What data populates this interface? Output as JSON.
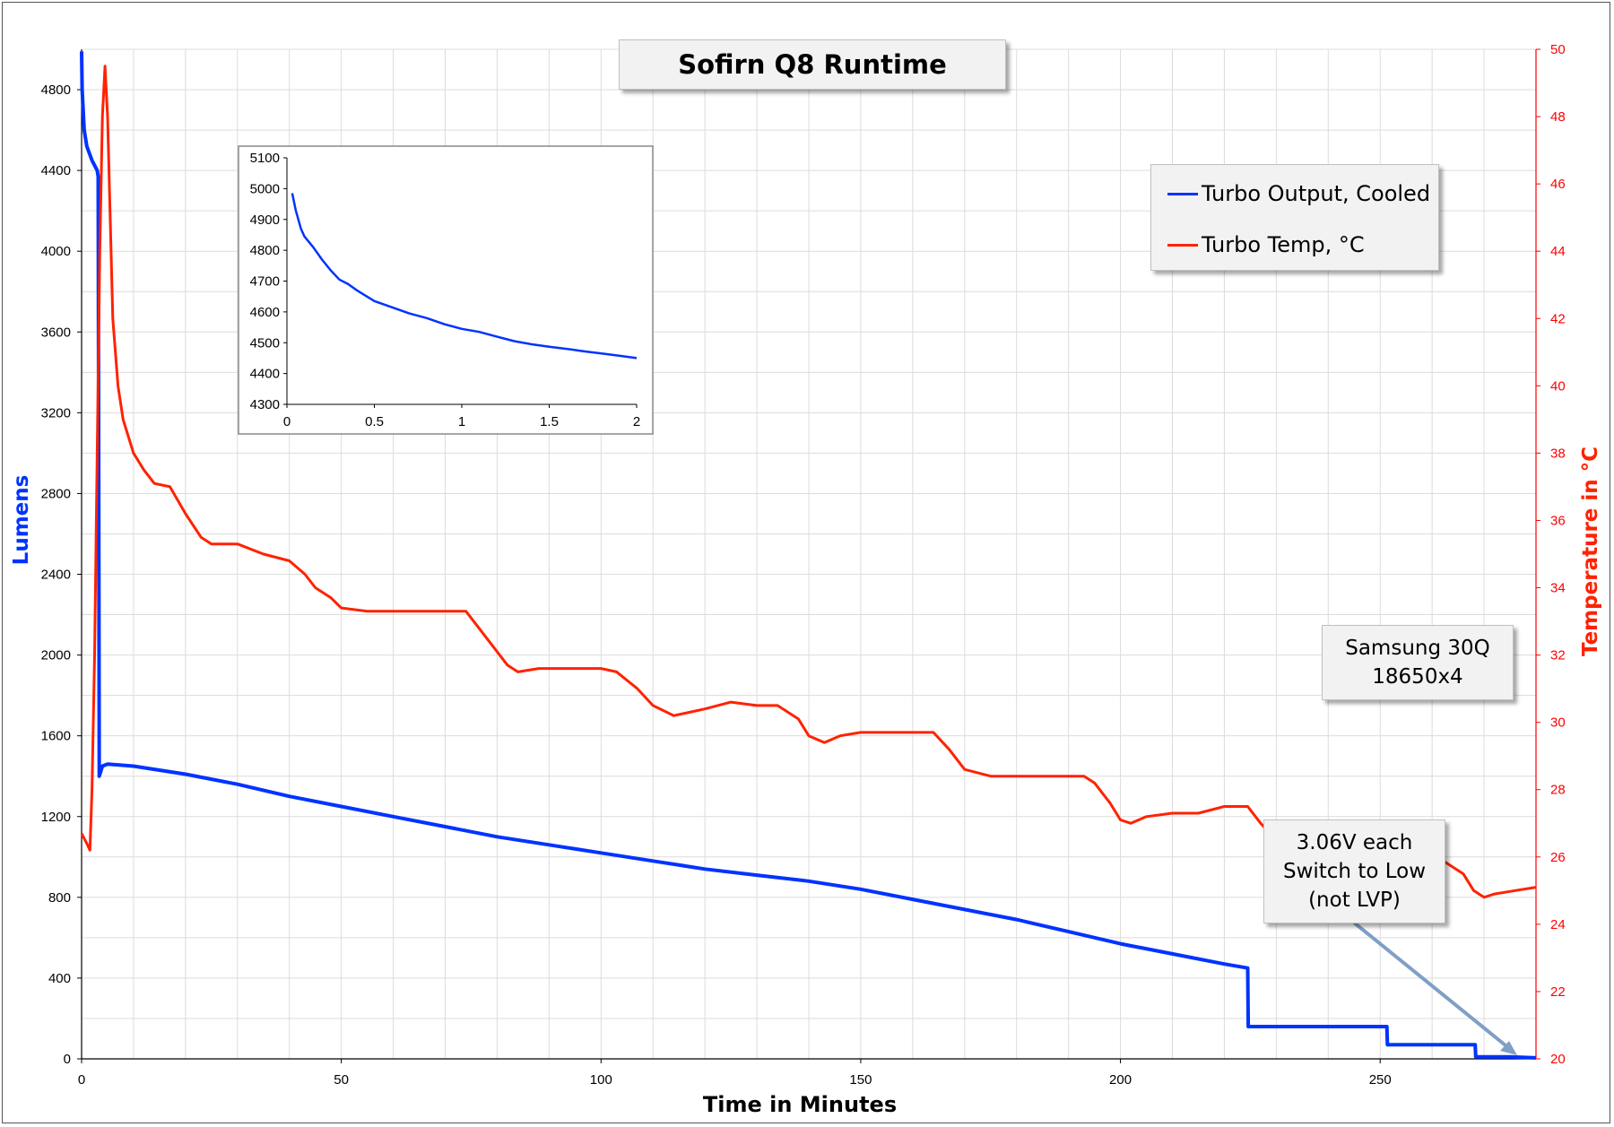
{
  "title": "Sofirn Q8 Runtime",
  "legend": {
    "entries": [
      {
        "label": "Turbo Output, Cooled",
        "color": "#0033ff"
      },
      {
        "label": "Turbo Temp, °C",
        "color": "#ff2200"
      }
    ]
  },
  "battery_note": {
    "line1": "Samsung 30Q",
    "line2": "18650x4"
  },
  "switch_note": {
    "line1": "3.06V each",
    "line2": "Switch to Low",
    "line3": "(not LVP)"
  },
  "colors": {
    "lumens": "#0033ff",
    "temp": "#ff2200",
    "arrow": "#7f9fc8",
    "grid": "#dcdcdc"
  },
  "chart_data": [
    {
      "type": "line",
      "title": "Sofirn Q8 Runtime",
      "xlabel": "Time in Minutes",
      "ylabel": "Lumens",
      "y2label": "Temperature in °C",
      "xlim": [
        0,
        280
      ],
      "ylim": [
        0,
        5000
      ],
      "y2lim": [
        20,
        50
      ],
      "x_ticks": [
        0,
        50,
        100,
        150,
        200,
        250
      ],
      "y_ticks": [
        0,
        400,
        800,
        1200,
        1600,
        2000,
        2400,
        2800,
        3200,
        3600,
        4000,
        4400,
        4800
      ],
      "y2_ticks": [
        20,
        22,
        24,
        26,
        28,
        30,
        32,
        34,
        36,
        38,
        40,
        42,
        44,
        46,
        48,
        50
      ],
      "grid": true,
      "legend_position": "top-right",
      "series": [
        {
          "name": "Turbo Output, Cooled",
          "axis": "left",
          "x": [
            0,
            0.1,
            0.5,
            1,
            2,
            3,
            3.2,
            3.4,
            4,
            5,
            10,
            20,
            30,
            40,
            50,
            60,
            70,
            80,
            90,
            100,
            110,
            120,
            130,
            140,
            150,
            160,
            170,
            180,
            190,
            200,
            210,
            220,
            224.5,
            224.6,
            230,
            240,
            251.3,
            251.4,
            260,
            268.3,
            268.4,
            275,
            280
          ],
          "y": [
            4990,
            4800,
            4600,
            4520,
            4450,
            4400,
            4370,
            1400,
            1450,
            1460,
            1450,
            1410,
            1360,
            1300,
            1250,
            1200,
            1150,
            1100,
            1060,
            1020,
            980,
            940,
            910,
            880,
            840,
            790,
            740,
            690,
            630,
            570,
            520,
            470,
            450,
            160,
            160,
            160,
            160,
            70,
            70,
            70,
            10,
            10,
            5
          ]
        },
        {
          "name": "Turbo Temp, °C",
          "axis": "right",
          "x": [
            0,
            1,
            1.6,
            2,
            2.5,
            3,
            3.5,
            4,
            4.5,
            5,
            5.5,
            6,
            7,
            8,
            10,
            12,
            14,
            17,
            20,
            23,
            25,
            30,
            35,
            40,
            43,
            45,
            48,
            50,
            55,
            60,
            65,
            70,
            74,
            78,
            82,
            84,
            88,
            92,
            96,
            100,
            103,
            107,
            110,
            114,
            120,
            125,
            130,
            134,
            138,
            140,
            143,
            146,
            150,
            155,
            160,
            164,
            167,
            170,
            175,
            180,
            185,
            190,
            193,
            195,
            198,
            200,
            202,
            205,
            210,
            215,
            220,
            224.5,
            225,
            227,
            230,
            240,
            250,
            262,
            266,
            268,
            270,
            272,
            276,
            280
          ],
          "y": [
            26.7,
            26.4,
            26.2,
            28,
            32,
            38,
            44,
            48,
            49.5,
            48,
            45,
            42,
            40,
            39,
            38,
            37.5,
            37.1,
            37,
            36.2,
            35.5,
            35.3,
            35.3,
            35.0,
            34.8,
            34.4,
            34.0,
            33.7,
            33.4,
            33.3,
            33.3,
            33.3,
            33.3,
            33.3,
            32.5,
            31.7,
            31.5,
            31.6,
            31.6,
            31.6,
            31.6,
            31.5,
            31.0,
            30.5,
            30.2,
            30.4,
            30.6,
            30.5,
            30.5,
            30.1,
            29.6,
            29.4,
            29.6,
            29.7,
            29.7,
            29.7,
            29.7,
            29.2,
            28.6,
            28.4,
            28.4,
            28.4,
            28.4,
            28.4,
            28.2,
            27.6,
            27.1,
            27.0,
            27.2,
            27.3,
            27.3,
            27.5,
            27.5,
            27.4,
            27.0,
            26.5,
            26.3,
            26.1,
            25.9,
            25.5,
            25.0,
            24.8,
            24.9,
            25.0,
            25.1
          ]
        }
      ]
    },
    {
      "type": "line",
      "title": "",
      "xlim": [
        0,
        2
      ],
      "ylim": [
        4300,
        5100
      ],
      "x_ticks": [
        "0",
        "0.5",
        "1",
        "1.5",
        "2"
      ],
      "y_ticks": [
        4300,
        4400,
        4500,
        4600,
        4700,
        4800,
        4900,
        5000,
        5100
      ],
      "series": [
        {
          "name": "Turbo Output, Cooled",
          "x": [
            0.03,
            0.05,
            0.08,
            0.1,
            0.15,
            0.2,
            0.25,
            0.3,
            0.35,
            0.4,
            0.5,
            0.6,
            0.7,
            0.8,
            0.9,
            1.0,
            1.1,
            1.2,
            1.3,
            1.4,
            1.5,
            1.6,
            1.7,
            1.8,
            1.9,
            2.0
          ],
          "y": [
            4985,
            4930,
            4870,
            4845,
            4810,
            4770,
            4735,
            4705,
            4690,
            4670,
            4635,
            4615,
            4595,
            4580,
            4560,
            4545,
            4535,
            4520,
            4505,
            4495,
            4487,
            4480,
            4472,
            4465,
            4458,
            4450
          ]
        }
      ]
    }
  ]
}
